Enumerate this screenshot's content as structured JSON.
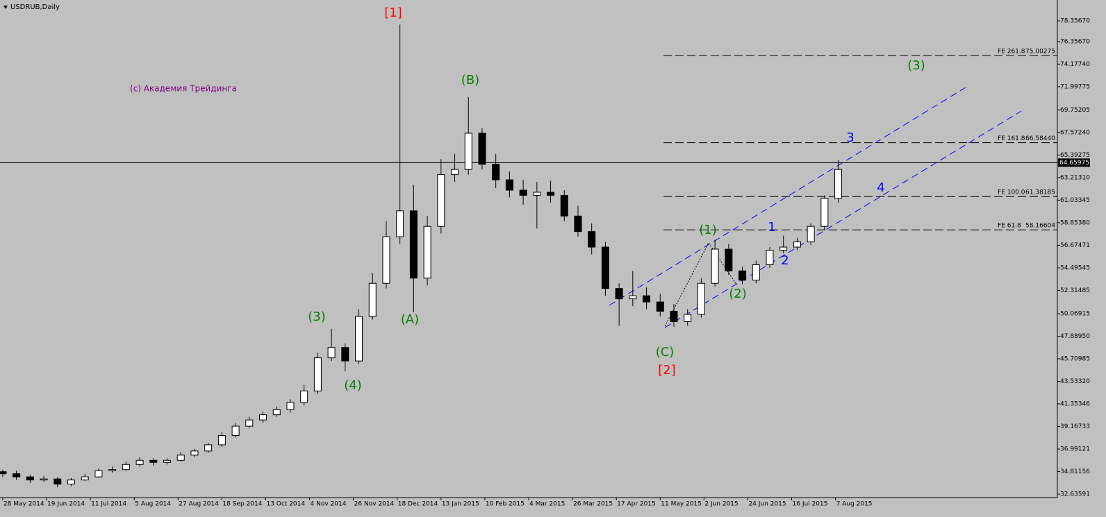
{
  "chart_data": {
    "type": "candlestick",
    "title": "USDRUB,Daily",
    "watermark": "(c) Академия Трейдинга",
    "xlim": [
      -1,
      385
    ],
    "ylim": [
      32.3,
      80.37
    ],
    "grid": false,
    "up_color": "#ffffff",
    "down_color": "#000000",
    "x": [
      0,
      5,
      10,
      15,
      20,
      25,
      30,
      35,
      40,
      45,
      50,
      55,
      60,
      65,
      70,
      75,
      80,
      85,
      90,
      95,
      100,
      105,
      110,
      115,
      120,
      125,
      130,
      135,
      140,
      145,
      150,
      155,
      160,
      165,
      170,
      175,
      180,
      185,
      190,
      195,
      200,
      205,
      210,
      215,
      220,
      225,
      230,
      235,
      240,
      245,
      250,
      255,
      260,
      265,
      270,
      275,
      280,
      285,
      290,
      295,
      300,
      305
    ],
    "open": [
      34.8,
      34.6,
      34.3,
      34.0,
      34.1,
      33.6,
      34.0,
      34.3,
      34.9,
      35.0,
      35.5,
      35.9,
      35.7,
      35.9,
      36.4,
      36.8,
      37.4,
      38.3,
      39.2,
      39.8,
      40.3,
      40.8,
      41.5,
      42.6,
      45.8,
      46.8,
      45.5,
      49.8,
      53.0,
      57.5,
      60.0,
      53.5,
      58.5,
      63.5,
      64.0,
      67.5,
      64.5,
      63.0,
      62.0,
      61.5,
      61.8,
      61.5,
      59.5,
      58.0,
      56.5,
      52.5,
      51.5,
      51.8,
      51.2,
      50.3,
      49.3,
      50.0,
      53.0,
      56.3,
      54.2,
      53.3,
      54.8,
      56.2,
      56.5,
      57.0,
      58.5,
      61.2
    ],
    "high": [
      35.0,
      34.9,
      34.5,
      34.4,
      34.3,
      34.2,
      34.6,
      35.1,
      35.3,
      35.8,
      36.2,
      36.1,
      36.1,
      36.7,
      37.0,
      37.6,
      38.6,
      39.5,
      40.1,
      40.6,
      41.1,
      41.8,
      43.2,
      46.3,
      48.6,
      47.2,
      50.5,
      54.0,
      59.0,
      78.0,
      62.5,
      59.5,
      65.0,
      65.5,
      71.0,
      68.0,
      65.5,
      63.8,
      63.0,
      62.8,
      62.9,
      62.0,
      60.5,
      58.8,
      57.0,
      53.0,
      54.2,
      52.6,
      52.0,
      51.0,
      50.5,
      53.5,
      57.2,
      56.8,
      54.6,
      55.2,
      56.5,
      57.6,
      57.4,
      58.8,
      61.5,
      64.9
    ],
    "low": [
      34.3,
      34.0,
      33.7,
      33.8,
      33.3,
      33.4,
      33.9,
      34.2,
      34.7,
      34.9,
      35.3,
      35.4,
      35.5,
      35.8,
      36.2,
      36.6,
      37.2,
      38.1,
      39.0,
      39.5,
      40.1,
      40.5,
      41.2,
      42.3,
      45.5,
      44.5,
      45.2,
      49.5,
      52.5,
      56.8,
      50.2,
      52.8,
      57.8,
      62.8,
      63.5,
      64.0,
      62.2,
      61.3,
      60.6,
      58.3,
      60.8,
      59.0,
      57.5,
      55.8,
      51.8,
      48.9,
      50.8,
      50.5,
      49.8,
      48.8,
      48.9,
      49.7,
      52.7,
      53.8,
      52.9,
      53.0,
      54.5,
      55.9,
      56.2,
      56.7,
      58.2,
      60.8
    ],
    "close": [
      34.6,
      34.3,
      34.0,
      34.1,
      33.6,
      34.0,
      34.3,
      34.9,
      35.0,
      35.5,
      35.9,
      35.7,
      35.9,
      36.4,
      36.8,
      37.4,
      38.3,
      39.2,
      39.8,
      40.3,
      40.8,
      41.5,
      42.6,
      45.8,
      46.8,
      45.5,
      49.8,
      53.0,
      57.5,
      60.0,
      53.5,
      58.5,
      63.5,
      64.0,
      67.5,
      64.5,
      63.0,
      62.0,
      61.5,
      61.8,
      61.5,
      59.5,
      58.0,
      56.5,
      52.5,
      51.5,
      51.8,
      51.2,
      50.3,
      49.3,
      50.0,
      53.0,
      56.3,
      54.2,
      53.3,
      54.8,
      56.2,
      56.5,
      57.0,
      58.5,
      61.2,
      64.0
    ],
    "xticks": [
      {
        "value": 0,
        "label": "28 May 2014"
      },
      {
        "value": 16,
        "label": "19 Jun 2014"
      },
      {
        "value": 32,
        "label": "11 Jul 2014"
      },
      {
        "value": 48,
        "label": "5 Aug 2014"
      },
      {
        "value": 64,
        "label": "27 Aug 2014"
      },
      {
        "value": 80,
        "label": "18 Sep 2014"
      },
      {
        "value": 96,
        "label": "13 Oct 2014"
      },
      {
        "value": 112,
        "label": "4 Nov 2014"
      },
      {
        "value": 128,
        "label": "26 Nov 2014"
      },
      {
        "value": 144,
        "label": "18 Dec 2014"
      },
      {
        "value": 160,
        "label": "13 Jan 2015"
      },
      {
        "value": 176,
        "label": "10 Feb 2015"
      },
      {
        "value": 192,
        "label": "4 Mar 2015"
      },
      {
        "value": 208,
        "label": "26 Mar 2015"
      },
      {
        "value": 224,
        "label": "17 Apr 2015"
      },
      {
        "value": 240,
        "label": "11 May 2015"
      },
      {
        "value": 256,
        "label": "2 Jun 2015"
      },
      {
        "value": 272,
        "label": "24 Jun 2015"
      },
      {
        "value": 288,
        "label": "16 Jul 2015"
      },
      {
        "value": 304,
        "label": "7 Aug 2015"
      }
    ],
    "yticks": [
      {
        "value": 32.63591,
        "label": "32.63591"
      },
      {
        "value": 34.81156,
        "label": "34.81156"
      },
      {
        "value": 36.99121,
        "label": "36.99121"
      },
      {
        "value": 39.16733,
        "label": "39.16733"
      },
      {
        "value": 41.35346,
        "label": "41.35346"
      },
      {
        "value": 43.5332,
        "label": "43.53320"
      },
      {
        "value": 45.70985,
        "label": "45.70985"
      },
      {
        "value": 47.8895,
        "label": "47.88950"
      },
      {
        "value": 50.06915,
        "label": "50.06915"
      },
      {
        "value": 52.31485,
        "label": "52.31485"
      },
      {
        "value": 54.49545,
        "label": "54.49545"
      },
      {
        "value": 56.67471,
        "label": "56.67471"
      },
      {
        "value": 58.8538,
        "label": "58.85380"
      },
      {
        "value": 61.03345,
        "label": "61.03345"
      },
      {
        "value": 63.2131,
        "label": "63.21310"
      },
      {
        "value": 65.39275,
        "label": "65.39275"
      },
      {
        "value": 67.5724,
        "label": "67.57240"
      },
      {
        "value": 69.75205,
        "label": "69.75205"
      },
      {
        "value": 71.99775,
        "label": "71.99775"
      },
      {
        "value": 74.1774,
        "label": "74.17740"
      },
      {
        "value": 76.3567,
        "label": "76.35670"
      },
      {
        "value": 78.3567,
        "label": "78.35670"
      }
    ],
    "current_price": {
      "value": 64.65975,
      "label": "64.65975"
    },
    "levels": {
      "names": [
        "FE 261.8",
        "FE 161.8",
        "FE 100.0",
        "FE 61.8"
      ],
      "values": [
        75.00275,
        66.5844,
        61.38185,
        58.16604
      ],
      "value_labels": [
        "75.00275",
        "66.58440",
        "61.38185",
        "58.16604"
      ]
    },
    "annotations": [
      {
        "text": "[1]",
        "color": "#ff0000"
      },
      {
        "text": "(B)",
        "color": "#008000"
      },
      {
        "text": "(3)",
        "color": "#008000"
      },
      {
        "text": "(4)",
        "color": "#008000"
      },
      {
        "text": "(A)",
        "color": "#008000"
      },
      {
        "text": "(C)",
        "color": "#008000"
      },
      {
        "text": "[2]",
        "color": "#ff0000"
      },
      {
        "text": "(1)",
        "color": "#008000"
      },
      {
        "text": "(2)",
        "color": "#008000"
      },
      {
        "text": "1",
        "color": "#0000ff"
      },
      {
        "text": "2",
        "color": "#0000ff"
      },
      {
        "text": "3",
        "color": "#0000ff"
      },
      {
        "text": "4",
        "color": "#0000ff"
      },
      {
        "text": "(3)",
        "color": "#008000"
      }
    ]
  }
}
